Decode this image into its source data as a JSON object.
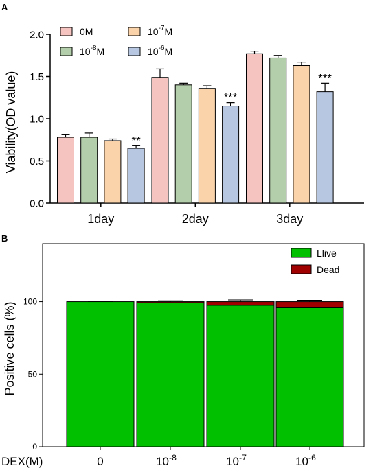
{
  "panels": {
    "a_label": "A",
    "b_label": "B"
  },
  "chart_data": [
    {
      "type": "bar",
      "panel": "A",
      "ylabel": "Viability(OD value)",
      "xlabel": "",
      "ylim": [
        0,
        2.0
      ],
      "yticks": [
        "0.0",
        "0.5",
        "1.0",
        "1.5",
        "2.0"
      ],
      "categories": [
        "1day",
        "2day",
        "3day"
      ],
      "legend_position": "top-left, inside, two columns",
      "series": [
        {
          "name": "0M",
          "name_base": "0M",
          "name_exp": "",
          "name_unit": "",
          "color": "#f5c4c0",
          "values": [
            0.78,
            1.49,
            1.77
          ],
          "errors": [
            0.03,
            0.1,
            0.03
          ],
          "sig": [
            "",
            "",
            ""
          ]
        },
        {
          "name": "10-8M",
          "name_base": "10",
          "name_exp": "-8",
          "name_unit": "M",
          "color": "#b3ceaa",
          "values": [
            0.78,
            1.4,
            1.72
          ],
          "errors": [
            0.05,
            0.02,
            0.03
          ],
          "sig": [
            "",
            "",
            ""
          ]
        },
        {
          "name": "10-7M",
          "name_base": "10",
          "name_exp": "-7",
          "name_unit": "M",
          "color": "#fad3ab",
          "values": [
            0.74,
            1.36,
            1.63
          ],
          "errors": [
            0.02,
            0.03,
            0.04
          ],
          "sig": [
            "",
            "",
            ""
          ]
        },
        {
          "name": "10-6M",
          "name_base": "10",
          "name_exp": "-6",
          "name_unit": "M",
          "color": "#b8c7e1",
          "values": [
            0.65,
            1.15,
            1.32
          ],
          "errors": [
            0.03,
            0.04,
            0.1
          ],
          "sig": [
            "**",
            "***",
            "***"
          ]
        }
      ]
    },
    {
      "type": "bar",
      "stacked": true,
      "panel": "B",
      "ylabel": "Positive cells (%)",
      "x_title": "DEX(M)",
      "ylim": [
        0,
        140
      ],
      "yticks": [
        "0",
        "50",
        "100"
      ],
      "categories": [
        {
          "label": "0",
          "base": "0",
          "exp": ""
        },
        {
          "label": "10-8",
          "base": "10",
          "exp": "-8"
        },
        {
          "label": "10-7",
          "base": "10",
          "exp": "-7"
        },
        {
          "label": "10-6",
          "base": "10",
          "exp": "-6"
        }
      ],
      "legend_position": "top-right, inside",
      "series": [
        {
          "name": "Llive",
          "color": "#00c000",
          "values": [
            100,
            99.3,
            97.5,
            95.8
          ]
        },
        {
          "name": "Dead",
          "color": "#a00000",
          "values": [
            0,
            0.7,
            2.5,
            4.2
          ],
          "errors": [
            0.3,
            0.6,
            1.2,
            1.0
          ]
        }
      ]
    }
  ]
}
